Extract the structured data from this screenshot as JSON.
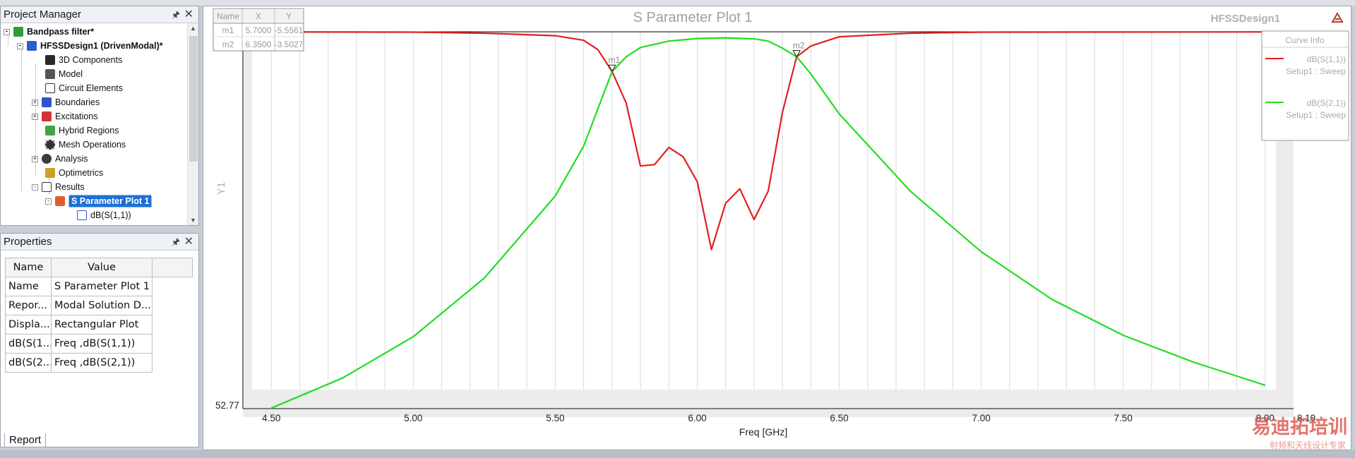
{
  "project_manager": {
    "title": "Project Manager",
    "items": [
      {
        "label": "Bandpass filter*",
        "icon": "project-icon"
      },
      {
        "label": "HFSSDesign1 (DrivenModal)*",
        "icon": "design-icon"
      },
      {
        "label": "3D Components",
        "icon": "components-icon"
      },
      {
        "label": "Model",
        "icon": "model-icon"
      },
      {
        "label": "Circuit Elements",
        "icon": "circuit-icon"
      },
      {
        "label": "Boundaries",
        "icon": "boundaries-icon"
      },
      {
        "label": "Excitations",
        "icon": "excitations-icon"
      },
      {
        "label": "Hybrid Regions",
        "icon": "hybrid-icon"
      },
      {
        "label": "Mesh Operations",
        "icon": "mesh-icon"
      },
      {
        "label": "Analysis",
        "icon": "analysis-icon"
      },
      {
        "label": "Optimetrics",
        "icon": "optimetrics-icon"
      },
      {
        "label": "Results",
        "icon": "results-icon"
      },
      {
        "label": "S Parameter Plot 1",
        "icon": "plot-icon"
      },
      {
        "label": "dB(S(1,1))",
        "icon": "trace-icon"
      }
    ]
  },
  "properties": {
    "title": "Properties",
    "headers": [
      "Name",
      "Value"
    ],
    "rows": [
      [
        "Name",
        "S Parameter Plot 1"
      ],
      [
        "Repor...",
        "Modal Solution D..."
      ],
      [
        "Displa...",
        "Rectangular Plot"
      ],
      [
        "dB(S(1...",
        "Freq ,dB(S(1,1))"
      ],
      [
        "dB(S(2...",
        "Freq ,dB(S(2,1))"
      ]
    ],
    "tab": "Report"
  },
  "plot": {
    "design_name": "HFSSDesign1",
    "marker_table": {
      "headers": [
        "Name",
        "X",
        "Y"
      ],
      "rows": [
        [
          "m1",
          "5.7000",
          "-5.5561"
        ],
        [
          "m2",
          "6.3500",
          "-3.5027"
        ]
      ]
    },
    "curve_info": {
      "title": "Curve Info",
      "items": [
        {
          "name": "dB(S(1,1))",
          "setup": "Setup1 : Sweep",
          "color": "#e02020"
        },
        {
          "name": "dB(S(2,1))",
          "setup": "Setup1 : Sweep",
          "color": "#22dd22"
        }
      ]
    },
    "watermark": "易迪拓培训",
    "watermark_sub": "射频和天线设计专家"
  },
  "chart_data": {
    "type": "line",
    "title": "S Parameter Plot 1",
    "xlabel": "Freq [GHz]",
    "ylabel": "Y1",
    "xlim": [
      4.4,
      8.1
    ],
    "ylim": [
      -52.77,
      0
    ],
    "ylim_label": "52.77",
    "x_ticks": [
      "4.50",
      "5.00",
      "5.50",
      "6.00",
      "6.50",
      "7.00",
      "7.50",
      "8.00",
      "8.10"
    ],
    "x_tick_values": [
      4.5,
      5.0,
      5.5,
      6.0,
      6.5,
      7.0,
      7.5,
      8.0,
      8.1
    ],
    "series": [
      {
        "name": "dB(S(1,1))",
        "color": "#e02020",
        "x": [
          4.5,
          5.0,
          5.25,
          5.5,
          5.6,
          5.65,
          5.7,
          5.75,
          5.8,
          5.85,
          5.9,
          5.95,
          6.0,
          6.05,
          6.1,
          6.15,
          6.2,
          6.25,
          6.3,
          6.35,
          6.4,
          6.5,
          6.75,
          7.0,
          8.0
        ],
        "y": [
          -0.02,
          -0.05,
          -0.2,
          -0.55,
          -1.2,
          -2.5,
          -5.5561,
          -10.0,
          -18.8,
          -18.6,
          -16.2,
          -17.5,
          -21.0,
          -30.5,
          -24.0,
          -22.0,
          -26.3,
          -22.3,
          -11.3,
          -3.5027,
          -2.0,
          -0.7,
          -0.2,
          -0.05,
          -0.02
        ]
      },
      {
        "name": "dB(S(2,1))",
        "color": "#22dd22",
        "x": [
          4.5,
          4.75,
          5.0,
          5.25,
          5.5,
          5.6,
          5.7,
          5.75,
          5.8,
          5.9,
          6.0,
          6.1,
          6.2,
          6.25,
          6.3,
          6.35,
          6.4,
          6.5,
          6.75,
          7.0,
          7.25,
          7.5,
          7.75,
          8.0
        ],
        "y": [
          -52.7,
          -48.5,
          -42.7,
          -34.5,
          -23.0,
          -16.0,
          -5.6,
          -3.5,
          -2.2,
          -1.3,
          -0.95,
          -0.85,
          -1.0,
          -1.3,
          -2.3,
          -3.5027,
          -5.9,
          -11.5,
          -22.3,
          -30.8,
          -37.5,
          -42.5,
          -46.3,
          -49.5
        ]
      }
    ],
    "markers": [
      {
        "name": "m1",
        "x": 5.7,
        "y": -5.5561
      },
      {
        "name": "m2",
        "x": 6.35,
        "y": -3.5027
      }
    ],
    "grid": true,
    "legend": "top-right"
  }
}
